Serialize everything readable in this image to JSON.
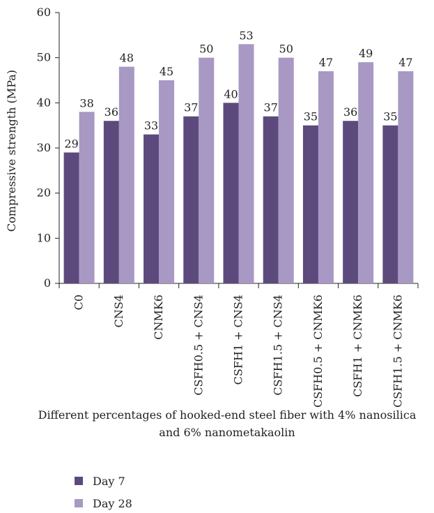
{
  "chart_data": {
    "type": "bar",
    "categories": [
      "C0",
      "CNS4",
      "CNMK6",
      "CSFH0.5 + CNS4",
      "CSFH1 + CNS4",
      "CSFH1.5 + CNS4",
      "CSFH0.5 + CNMK6",
      "CSFH1 + CNMK6",
      "CSFH1.5 + CNMK6"
    ],
    "series": [
      {
        "name": "Day 7",
        "values": [
          29,
          36,
          33,
          37,
          40,
          37,
          35,
          36,
          35
        ],
        "color": "#5c4a7d"
      },
      {
        "name": "Day 28",
        "values": [
          38,
          48,
          45,
          50,
          53,
          50,
          47,
          49,
          47
        ],
        "color": "#a898c4"
      }
    ],
    "ylabel": "Compressive strength (MPa)",
    "xlabel_lines": [
      "Different percentages of hooked-end steel fiber with 4% nanosilica",
      "and 6% nanometakaolin"
    ],
    "ylim": [
      0,
      60
    ],
    "yticks": [
      0,
      10,
      20,
      30,
      40,
      50,
      60
    ],
    "grid": false,
    "data_labels": true,
    "legend_position": "bottom-left"
  }
}
